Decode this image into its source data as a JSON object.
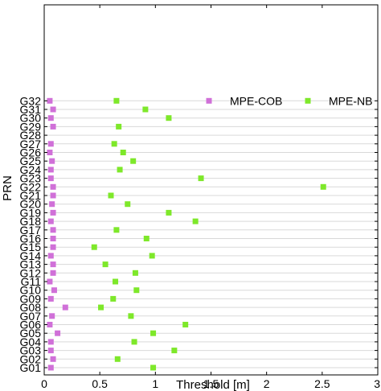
{
  "chart_data": {
    "type": "scatter",
    "xlabel": "Threshold [m]",
    "ylabel": "PRN",
    "xlim": [
      0,
      3
    ],
    "x_ticks": [
      0,
      0.5,
      1,
      1.5,
      2,
      2.5,
      3
    ],
    "x_tick_labels": [
      "0",
      "0.5",
      "1",
      "1.5",
      "2",
      "2.5",
      "3"
    ],
    "grid": "horizontal",
    "legend_position": "top-right",
    "categories": [
      "G01",
      "G02",
      "G03",
      "G04",
      "G05",
      "G06",
      "G07",
      "G08",
      "G09",
      "G10",
      "G11",
      "G12",
      "G13",
      "G14",
      "G15",
      "G16",
      "G17",
      "G18",
      "G19",
      "G20",
      "G21",
      "G22",
      "G23",
      "G24",
      "G25",
      "G26",
      "G27",
      "G28",
      "G29",
      "G30",
      "G31",
      "G32"
    ],
    "series": [
      {
        "name": "MPE-COB",
        "color": "#d070d8",
        "marker": "square",
        "values": [
          0.06,
          0.08,
          0.06,
          0.06,
          0.12,
          0.05,
          0.07,
          0.19,
          0.06,
          0.09,
          0.05,
          0.08,
          0.08,
          0.06,
          0.08,
          0.08,
          0.08,
          0.06,
          0.08,
          0.07,
          0.08,
          0.08,
          0.06,
          0.06,
          0.07,
          0.05,
          0.06,
          null,
          0.08,
          0.06,
          0.08,
          0.05
        ]
      },
      {
        "name": "MPE-NB",
        "color": "#7ee82a",
        "marker": "square",
        "values": [
          0.98,
          0.66,
          1.17,
          0.81,
          0.98,
          1.27,
          0.78,
          0.51,
          0.62,
          0.83,
          0.64,
          0.82,
          0.55,
          0.97,
          0.45,
          0.92,
          0.65,
          1.36,
          1.12,
          0.75,
          0.6,
          2.51,
          1.41,
          0.68,
          0.8,
          0.71,
          0.63,
          null,
          0.67,
          1.12,
          0.91,
          0.65
        ]
      }
    ]
  }
}
